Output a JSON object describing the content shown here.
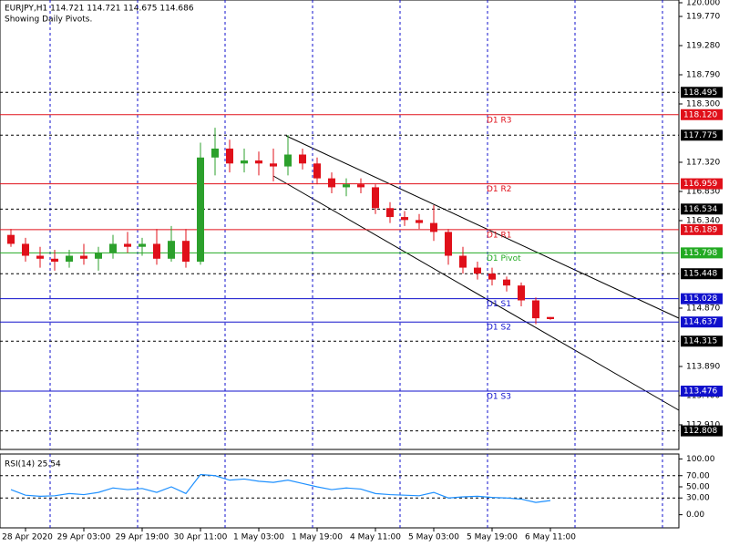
{
  "chart_data": [
    {
      "type": "candlestick",
      "title": "EURJPY,H1  114.721 114.721 114.675 114.686",
      "subtitle": "Showing Daily Pivots.",
      "categories": [
        null,
        "28 Apr 2020",
        null,
        null,
        null,
        "29 Apr 03:00",
        null,
        null,
        null,
        "29 Apr 19:00",
        null,
        null,
        null,
        "30 Apr 11:00",
        null,
        null,
        null,
        "1 May 03:00",
        null,
        null,
        null,
        "1 May 19:00",
        null,
        null,
        null,
        "4 May 11:00",
        null,
        null,
        null,
        "5 May 03:00",
        null,
        null,
        null,
        "5 May 19:00",
        null,
        null,
        null,
        "6 May 11:00"
      ],
      "open": [
        116.1,
        115.95,
        115.75,
        115.7,
        115.65,
        115.75,
        115.7,
        115.8,
        115.95,
        115.9,
        115.95,
        115.7,
        116.0,
        115.65,
        117.4,
        117.55,
        117.3,
        117.35,
        117.3,
        117.25,
        117.45,
        117.3,
        117.05,
        116.9,
        116.95,
        116.9,
        116.55,
        116.4,
        116.35,
        116.3,
        116.15,
        115.75,
        115.55,
        115.45,
        115.35,
        115.25,
        115.0,
        114.721
      ],
      "high": [
        116.2,
        116.05,
        115.9,
        115.85,
        115.85,
        115.95,
        115.9,
        116.1,
        116.15,
        116.05,
        116.2,
        116.25,
        116.2,
        117.65,
        117.9,
        117.7,
        117.55,
        117.5,
        117.55,
        117.78,
        117.55,
        117.4,
        117.15,
        117.05,
        117.05,
        116.95,
        116.65,
        116.5,
        116.45,
        116.6,
        116.2,
        115.9,
        115.65,
        115.55,
        115.4,
        115.3,
        115.05,
        114.721
      ],
      "low": [
        115.9,
        115.65,
        115.55,
        115.5,
        115.55,
        115.6,
        115.5,
        115.7,
        115.8,
        115.75,
        115.6,
        115.65,
        115.55,
        115.6,
        117.1,
        117.15,
        117.15,
        117.1,
        117.0,
        117.1,
        117.2,
        116.95,
        116.8,
        116.75,
        116.8,
        116.45,
        116.3,
        116.25,
        116.2,
        116.0,
        115.6,
        115.45,
        115.35,
        115.25,
        115.15,
        114.9,
        114.6,
        114.675
      ],
      "close": [
        115.95,
        115.75,
        115.7,
        115.65,
        115.75,
        115.7,
        115.8,
        115.95,
        115.9,
        115.95,
        115.7,
        116.0,
        115.65,
        117.4,
        117.55,
        117.3,
        117.35,
        117.3,
        117.25,
        117.45,
        117.3,
        117.05,
        116.9,
        116.95,
        116.9,
        116.55,
        116.4,
        116.35,
        116.3,
        116.15,
        115.75,
        115.55,
        115.45,
        115.35,
        115.25,
        115.0,
        114.7,
        114.686
      ],
      "up_color": "#2ca02c",
      "down_color": "#e0101a",
      "ylim": [
        112.496,
        120.046
      ],
      "yticks": [
        {
          "value": 120,
          "label": "120.000"
        },
        {
          "value": 119.77,
          "label": "119.770"
        },
        {
          "value": 119.28,
          "label": "119.280"
        },
        {
          "value": 118.79,
          "label": "118.790"
        },
        {
          "value": 118.3,
          "label": "118.300"
        },
        {
          "value": 117.32,
          "label": "117.320"
        },
        {
          "value": 116.83,
          "label": "116.830"
        },
        {
          "value": 116.34,
          "label": "116.340"
        },
        {
          "value": 114.87,
          "label": "114.870"
        },
        {
          "value": 113.89,
          "label": "113.890"
        },
        {
          "value": 113.4,
          "label": "113.400"
        },
        {
          "value": 112.91,
          "label": "112.910"
        }
      ],
      "levels": [
        118.495,
        117.775,
        116.534,
        115.448,
        114.315,
        112.808
      ],
      "pivots": [
        {
          "name": "D1 R3",
          "value": 118.12,
          "label": "118.120",
          "color": "#e0101a"
        },
        {
          "name": "D1 R2",
          "value": 116.959,
          "label": "116.959",
          "color": "#e0101a"
        },
        {
          "name": "D1 R1",
          "value": 116.189,
          "label": "116.189",
          "color": "#e0101a"
        },
        {
          "name": "D1 Pivot",
          "value": 115.798,
          "label": "115.798",
          "color": "#22aa22"
        },
        {
          "name": "D1 S1",
          "value": 115.028,
          "label": "115.028",
          "color": "#1010cc"
        },
        {
          "name": "D1 S2",
          "value": 114.637,
          "label": "114.637",
          "color": "#1010cc"
        },
        {
          "name": "D1 S3",
          "value": 113.476,
          "label": "113.476",
          "color": "#1010cc"
        }
      ]
    },
    {
      "type": "line",
      "title": "RSI(14) 25.54",
      "color": "#1e90ff",
      "values": [
        45,
        35,
        33,
        34,
        38,
        36,
        40,
        48,
        45,
        47,
        40,
        50,
        38,
        72,
        70,
        62,
        64,
        60,
        58,
        62,
        56,
        50,
        45,
        48,
        46,
        38,
        36,
        35,
        34,
        40,
        30,
        32,
        33,
        31,
        30,
        28,
        22,
        25.54
      ],
      "ylim": [
        -23.5,
        108.8
      ],
      "yticks": [
        {
          "value": 100,
          "label": "100.00"
        },
        {
          "value": 70,
          "label": "70.00"
        },
        {
          "value": 50,
          "label": "50.00"
        },
        {
          "value": 30,
          "label": "30.00"
        },
        {
          "value": 0,
          "label": "0.00"
        }
      ],
      "levels": [
        70,
        30
      ]
    }
  ]
}
